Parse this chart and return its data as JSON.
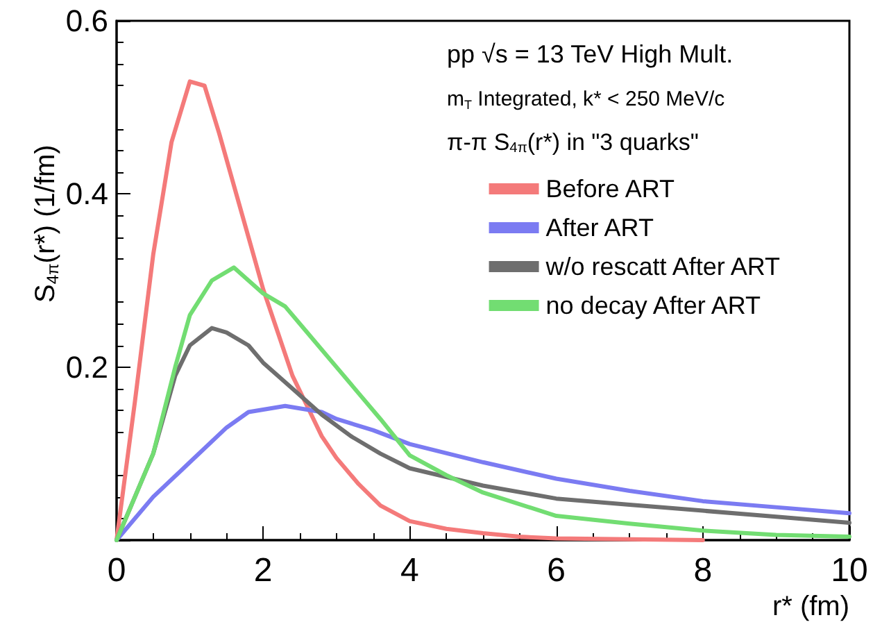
{
  "chart_data": {
    "type": "line",
    "xlabel": "r* (fm)",
    "ylabel": "S$_{4π}$(r*) (1/fm)",
    "annotations": [
      "pp √s = 13 TeV High Mult.",
      "m$_{T}$ Integrated, k* < 250 MeV/c"
    ],
    "legend_title": "π-π S$_{4π}$(r*) in \"3 quarks\"",
    "series": [
      {
        "name": "Before ART",
        "color": "#f47a7a",
        "x": [
          0,
          0.25,
          0.5,
          0.75,
          1.0,
          1.2,
          1.4,
          1.6,
          1.8,
          2.0,
          2.2,
          2.4,
          2.6,
          2.8,
          3.0,
          3.3,
          3.6,
          4.0,
          4.5,
          5.0,
          5.5,
          6.0,
          7.0,
          8.0
        ],
        "values": [
          0,
          0.16,
          0.33,
          0.46,
          0.53,
          0.525,
          0.47,
          0.41,
          0.35,
          0.29,
          0.24,
          0.19,
          0.155,
          0.12,
          0.095,
          0.065,
          0.04,
          0.022,
          0.013,
          0.008,
          0.004,
          0.002,
          0.001,
          0
        ]
      },
      {
        "name": "After ART",
        "color": "#7b7bf2",
        "x": [
          0,
          0.5,
          1.0,
          1.5,
          1.8,
          2.3,
          2.8,
          3.0,
          3.5,
          4.0,
          5.0,
          6.0,
          7.0,
          8.0,
          9.0,
          10.0
        ],
        "values": [
          0,
          0.05,
          0.09,
          0.13,
          0.148,
          0.155,
          0.148,
          0.14,
          0.127,
          0.111,
          0.09,
          0.071,
          0.057,
          0.045,
          0.038,
          0.031
        ]
      },
      {
        "name": "w/o rescatt After ART",
        "color": "#6e6e6e",
        "x": [
          0,
          0.5,
          0.8,
          1.0,
          1.3,
          1.5,
          1.8,
          2.0,
          2.4,
          2.8,
          3.2,
          3.6,
          4.0,
          5.0,
          6.0,
          7.0,
          8.0,
          9.0,
          10.0
        ],
        "values": [
          0,
          0.1,
          0.19,
          0.225,
          0.245,
          0.24,
          0.225,
          0.205,
          0.175,
          0.145,
          0.12,
          0.1,
          0.083,
          0.063,
          0.048,
          0.041,
          0.034,
          0.027,
          0.02
        ]
      },
      {
        "name": "no decay After ART",
        "color": "#72dd72",
        "x": [
          0,
          0.5,
          0.8,
          1.0,
          1.3,
          1.6,
          1.8,
          2.0,
          2.3,
          2.6,
          3.0,
          3.3,
          3.6,
          4.0,
          4.5,
          5.0,
          6.0,
          7.0,
          8.0,
          9.0,
          10.0
        ],
        "values": [
          0,
          0.1,
          0.2,
          0.26,
          0.3,
          0.315,
          0.3,
          0.285,
          0.27,
          0.24,
          0.2,
          0.17,
          0.14,
          0.098,
          0.075,
          0.055,
          0.028,
          0.019,
          0.011,
          0.006,
          0.004
        ]
      }
    ],
    "xlim": [
      0,
      10
    ],
    "xticks": [
      0,
      2,
      4,
      6,
      8,
      10
    ],
    "ylim": [
      0,
      0.6
    ],
    "yticks": [
      {
        "value": 0,
        "label": null
      },
      0.2,
      0.4,
      0.6
    ],
    "grid": false,
    "legend": "top right",
    "marker": "none",
    "line_style": "solid"
  }
}
